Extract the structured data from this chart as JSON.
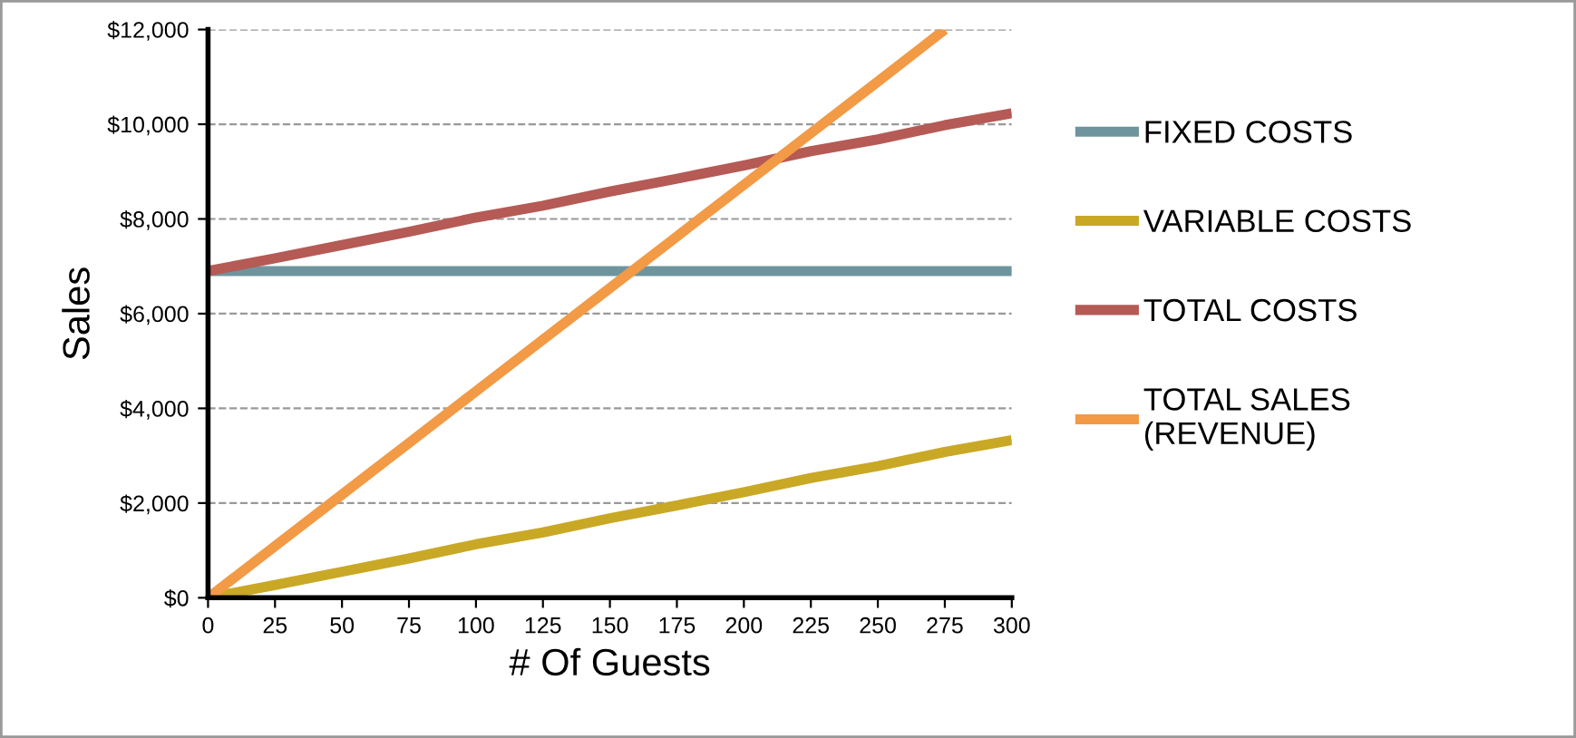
{
  "chart_data": {
    "type": "line",
    "xlabel": "# Of Guests",
    "ylabel": "Sales",
    "x": [
      0,
      25,
      50,
      75,
      100,
      125,
      150,
      175,
      200,
      225,
      250,
      275,
      300
    ],
    "series": [
      {
        "name": "FIXED COSTS",
        "color": "#6e959e",
        "values": [
          6900,
          6900,
          6900,
          6900,
          6900,
          6900,
          6900,
          6900,
          6900,
          6900,
          6900,
          6900,
          6900
        ]
      },
      {
        "name": "VARIABLE COSTS",
        "color": "#c9a826",
        "values": [
          0,
          270,
          550,
          830,
          1130,
          1380,
          1680,
          1950,
          2230,
          2530,
          2780,
          3080,
          3330
        ]
      },
      {
        "name": "TOTAL COSTS",
        "color": "#b55a55",
        "values": [
          6900,
          7170,
          7450,
          7730,
          8030,
          8280,
          8580,
          8850,
          9130,
          9430,
          9680,
          9980,
          10230
        ]
      },
      {
        "name": "TOTAL SALES\n(REVENUE)",
        "color": "#f29a45",
        "x": [
          0,
          25,
          50,
          75,
          100,
          125,
          150,
          175,
          200,
          225,
          250,
          275
        ],
        "values": [
          0,
          1090,
          2180,
          3270,
          4360,
          5450,
          6540,
          7630,
          8720,
          9810,
          10900,
          12000
        ]
      }
    ],
    "xlim": [
      0,
      300
    ],
    "xticks": [
      0,
      25,
      50,
      75,
      100,
      125,
      150,
      175,
      200,
      225,
      250,
      275,
      300
    ],
    "ylim": [
      0,
      12000
    ],
    "yticks": [
      {
        "value": 0,
        "label": "$0"
      },
      {
        "value": 2000,
        "label": "$2,000"
      },
      {
        "value": 4000,
        "label": "$4,000"
      },
      {
        "value": 6000,
        "label": "$6,000"
      },
      {
        "value": 8000,
        "label": "$8,000"
      },
      {
        "value": 10000,
        "label": "$10,000"
      },
      {
        "value": 12000,
        "label": "$12,000"
      }
    ],
    "grid": "y",
    "legend": "right",
    "line_style": "solid",
    "marker": "none"
  }
}
